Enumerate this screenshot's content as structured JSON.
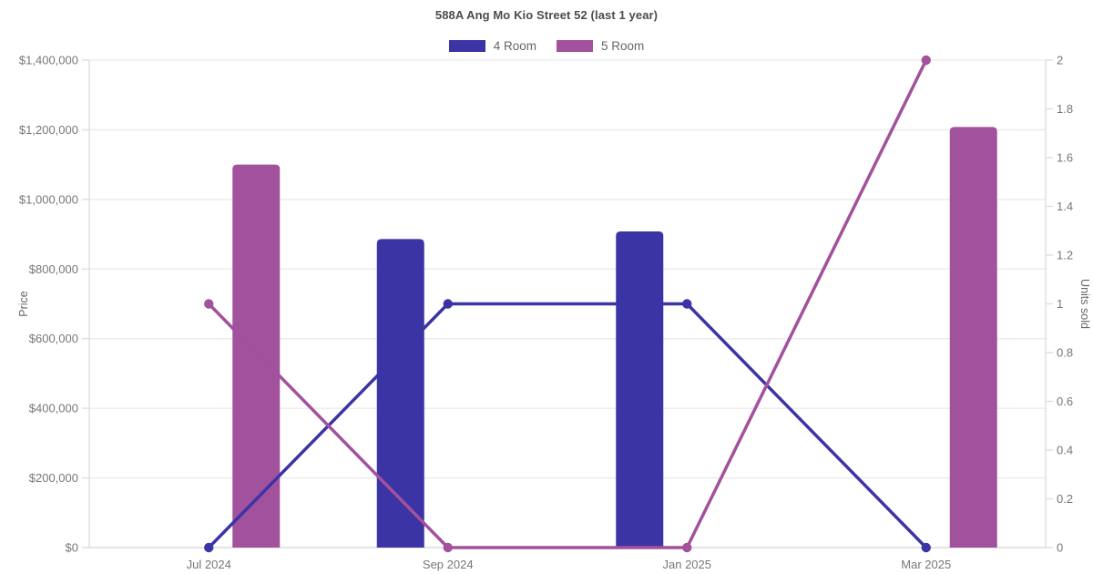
{
  "chart_data": {
    "type": "combo-bar-line",
    "title": "588A Ang Mo Kio Street 52 (last 1 year)",
    "categories": [
      "Jul 2024",
      "Sep 2024",
      "Jan 2025",
      "Mar 2025"
    ],
    "series": [
      {
        "name": "4 Room",
        "color": "#3b34a4",
        "bar_values_price": [
          null,
          886000,
          908000,
          null
        ],
        "line_values_units_sold": [
          0,
          1,
          1,
          0
        ]
      },
      {
        "name": "5 Room",
        "color": "#a2519d",
        "bar_values_price": [
          1100000,
          null,
          null,
          1208000
        ],
        "line_values_units_sold": [
          1,
          0,
          0,
          2
        ]
      }
    ],
    "left_axis": {
      "label": "Price",
      "min": 0,
      "max": 1400000,
      "tick_step": 200000,
      "tick_labels_top_to_bottom": [
        "$1,400,000",
        "$1,200,000",
        "$1,000,000",
        "$800,000",
        "$600,000",
        "$400,000",
        "$200,000",
        "$0"
      ]
    },
    "right_axis": {
      "label": "Units sold",
      "min": 0,
      "max": 2,
      "tick_step": 0.2,
      "tick_labels_top_to_bottom": [
        "2",
        "1.8",
        "1.6",
        "1.4",
        "1.2",
        "1",
        "0.8",
        "0.6",
        "0.4",
        "0.2",
        "0"
      ]
    },
    "legend_position": "top-center",
    "grid": "horizontal gridlines at left-axis tick positions only",
    "colors": {
      "gridline": "#e9e9e9",
      "axis_line": "#dcdcdc",
      "tick_text": "#777777",
      "axis_title_text": "#666666",
      "title_text": "#4c4c4c",
      "legend_text": "#666666",
      "background": "#ffffff"
    }
  }
}
